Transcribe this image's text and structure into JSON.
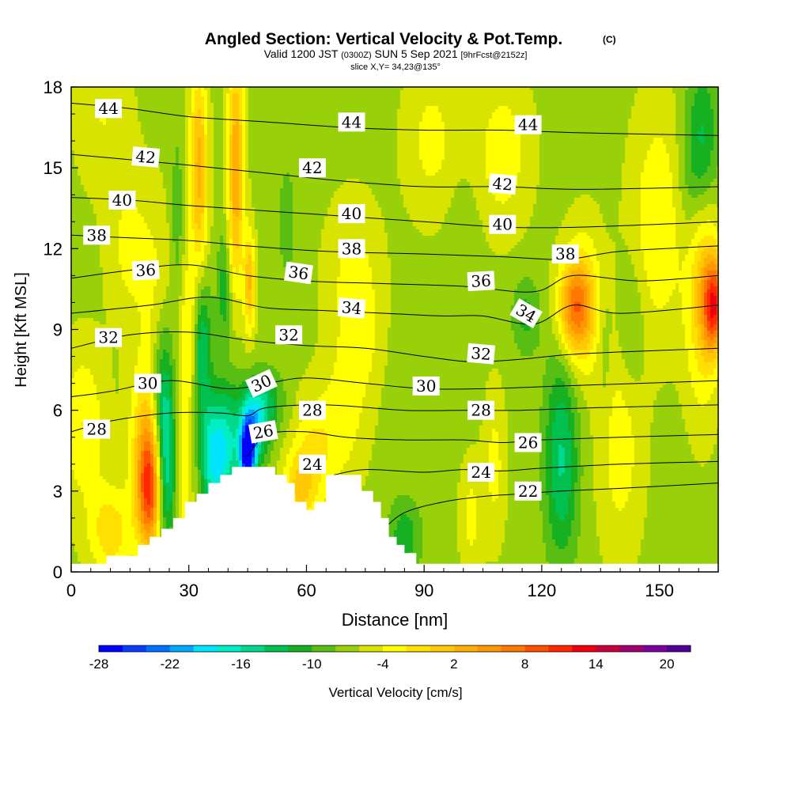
{
  "chart_data": {
    "type": "heatmap",
    "title": {
      "main": "Angled Section: Vertical Velocity & Pot.Temp.",
      "mark": "(C)",
      "valid_prefix": "Valid 1200 JST",
      "valid_utc": "(0300Z)",
      "valid_date": "SUN 5 Sep 2021",
      "forecast": "[9hrFcst@2152z]",
      "slice": "slice X,Y= 34,23@135°"
    },
    "xlabel": "Distance [nm]",
    "ylabel": "Height [Kft MSL]",
    "xlim": [
      0,
      165
    ],
    "ylim": [
      0,
      18
    ],
    "x_ticks": [
      "0",
      "30",
      "60",
      "90",
      "120",
      "150"
    ],
    "y_ticks": [
      "0",
      "3",
      "6",
      "9",
      "12",
      "15",
      "18"
    ],
    "colorbar": {
      "label": "Vertical Velocity [cm/s]",
      "tick_labels": [
        "-28",
        "-22",
        "-16",
        "-10",
        "-4",
        "2",
        "8",
        "14",
        "20"
      ],
      "colors": [
        "#0000ff",
        "#0a3cff",
        "#0070ff",
        "#00a8ff",
        "#00e4ff",
        "#00eec4",
        "#00d88c",
        "#00c050",
        "#16b020",
        "#58be14",
        "#98d00a",
        "#d8e400",
        "#ffff00",
        "#ffe000",
        "#ffc800",
        "#ffb000",
        "#ff9800",
        "#ff7800",
        "#ff5000",
        "#ff2800",
        "#f0000a",
        "#c8003c",
        "#a0006e",
        "#7a00a0",
        "#500096"
      ]
    },
    "background_value": 1,
    "vertical_velocity_cells": [
      {
        "x": 20,
        "z": 3,
        "w": 24,
        "sx": 2.2,
        "sz": 1.6
      },
      {
        "x": 19,
        "z": 5,
        "w": 10,
        "sx": 3,
        "sz": 2
      },
      {
        "x": 23.5,
        "z": 6.5,
        "w": -12,
        "sx": 2.2,
        "sz": 2.2
      },
      {
        "x": 24.5,
        "z": 3.5,
        "w": -12,
        "sx": 2,
        "sz": 2
      },
      {
        "x": 28,
        "z": 4,
        "w": 8,
        "sx": 2,
        "sz": 3
      },
      {
        "x": 30.5,
        "z": 9,
        "w": 10,
        "sx": 1.6,
        "sz": 2
      },
      {
        "x": 33,
        "z": 8.5,
        "w": -12,
        "sx": 1.8,
        "sz": 2
      },
      {
        "x": 36,
        "z": 4.2,
        "w": -14,
        "sx": 2.2,
        "sz": 1.6
      },
      {
        "x": 40,
        "z": 4.6,
        "w": -12,
        "sx": 2.5,
        "sz": 1.6
      },
      {
        "x": 45,
        "z": 4.3,
        "w": -28,
        "sx": 1.3,
        "sz": 0.9
      },
      {
        "x": 46.5,
        "z": 5.2,
        "w": -14,
        "sx": 2.5,
        "sz": 1
      },
      {
        "x": 49,
        "z": 6.3,
        "w": -8,
        "sx": 3.5,
        "sz": 0.8
      },
      {
        "x": 32.5,
        "z": 15.5,
        "w": 14,
        "sx": 1.6,
        "sz": 2.3
      },
      {
        "x": 33,
        "z": 12,
        "w": 6,
        "sx": 1.5,
        "sz": 2
      },
      {
        "x": 42,
        "z": 16,
        "w": 14,
        "sx": 1.5,
        "sz": 2.5
      },
      {
        "x": 42,
        "z": 12.5,
        "w": 8,
        "sx": 1.5,
        "sz": 2
      },
      {
        "x": 45.5,
        "z": 10.7,
        "w": 14,
        "sx": 1,
        "sz": 1.3
      },
      {
        "x": 39,
        "z": 10.5,
        "w": -6,
        "sx": 1.2,
        "sz": 1.5
      },
      {
        "x": 27,
        "z": 13,
        "w": -3,
        "sx": 1.2,
        "sz": 2.5
      },
      {
        "x": 22,
        "z": 9,
        "w": 6,
        "sx": 3,
        "sz": 3
      },
      {
        "x": 3,
        "z": 5.5,
        "w": 8,
        "sx": 4,
        "sz": 2
      },
      {
        "x": 10,
        "z": 1.5,
        "w": 10,
        "sx": 4,
        "sz": 1.2
      },
      {
        "x": 128.5,
        "z": 9.8,
        "w": 18,
        "sx": 3,
        "sz": 1.2
      },
      {
        "x": 131,
        "z": 10,
        "w": 8,
        "sx": 4,
        "sz": 2
      },
      {
        "x": 164,
        "z": 9.9,
        "w": 24,
        "sx": 2,
        "sz": 1.2
      },
      {
        "x": 161,
        "z": 10.5,
        "w": 12,
        "sx": 3,
        "sz": 3
      },
      {
        "x": 125,
        "z": 5,
        "w": -8,
        "sx": 3,
        "sz": 2.5
      },
      {
        "x": 125,
        "z": 2.5,
        "w": -3,
        "sx": 3,
        "sz": 2
      },
      {
        "x": 116,
        "z": 9.5,
        "w": -5,
        "sx": 2.5,
        "sz": 1
      },
      {
        "x": 142.5,
        "z": 9,
        "w": -4,
        "sx": 2.5,
        "sz": 1.8
      },
      {
        "x": 161,
        "z": 16,
        "w": -8,
        "sx": 3,
        "sz": 2
      },
      {
        "x": 158,
        "z": 14,
        "w": -3,
        "sx": 3,
        "sz": 2
      },
      {
        "x": 85,
        "z": 1.3,
        "w": -6,
        "sx": 3,
        "sz": 1
      },
      {
        "x": 62,
        "z": 4.5,
        "w": 8,
        "sx": 4,
        "sz": 1.5
      },
      {
        "x": 58,
        "z": 3,
        "w": 10,
        "sx": 3,
        "sz": 1
      },
      {
        "x": 70,
        "z": 6,
        "w": 6,
        "sx": 4,
        "sz": 2
      },
      {
        "x": 72,
        "z": 11,
        "w": 6,
        "sx": 5,
        "sz": 2
      },
      {
        "x": 102,
        "z": 2,
        "w": 6,
        "sx": 2,
        "sz": 1.5
      },
      {
        "x": 108,
        "z": 4,
        "w": 6,
        "sx": 2,
        "sz": 2
      },
      {
        "x": 140,
        "z": 5,
        "w": 7,
        "sx": 4,
        "sz": 3
      },
      {
        "x": 150,
        "z": 13,
        "w": 8,
        "sx": 5,
        "sz": 3
      },
      {
        "x": 110,
        "z": 15.5,
        "w": 7,
        "sx": 5,
        "sz": 2
      },
      {
        "x": 8,
        "z": 17,
        "w": 5,
        "sx": 5,
        "sz": 2
      },
      {
        "x": 15,
        "z": 12,
        "w": 6,
        "sx": 4,
        "sz": 2
      },
      {
        "x": 92,
        "z": 16,
        "w": 6,
        "sx": 5,
        "sz": 2
      },
      {
        "x": 136,
        "z": 8.5,
        "w": -3,
        "sx": 1.5,
        "sz": 2
      },
      {
        "x": 55,
        "z": 13,
        "w": -2,
        "sx": 2,
        "sz": 2
      },
      {
        "x": 100,
        "z": 12,
        "w": -1,
        "sx": 3,
        "sz": 2
      },
      {
        "x": 75,
        "z": 8.5,
        "w": 4,
        "sx": 3,
        "sz": 1.5
      }
    ],
    "terrain": [
      [
        0,
        0.3
      ],
      [
        9,
        0.3
      ],
      [
        9,
        0.6
      ],
      [
        15,
        0.6
      ],
      [
        15,
        0.6
      ],
      [
        17,
        0.6
      ],
      [
        17,
        1.0
      ],
      [
        20,
        1.0
      ],
      [
        20,
        1.3
      ],
      [
        23,
        1.3
      ],
      [
        23,
        1.6
      ],
      [
        26,
        1.6
      ],
      [
        26,
        2.0
      ],
      [
        29,
        2.0
      ],
      [
        29,
        2.6
      ],
      [
        32,
        2.6
      ],
      [
        32,
        2.9
      ],
      [
        35,
        2.9
      ],
      [
        35,
        3.3
      ],
      [
        38,
        3.3
      ],
      [
        38,
        3.6
      ],
      [
        41,
        3.6
      ],
      [
        41,
        3.9
      ],
      [
        52,
        3.9
      ],
      [
        52,
        3.6
      ],
      [
        55,
        3.6
      ],
      [
        55,
        3.3
      ],
      [
        57,
        3.3
      ],
      [
        57,
        2.6
      ],
      [
        60,
        2.6
      ],
      [
        60,
        2.3
      ],
      [
        62,
        2.3
      ],
      [
        62,
        2.6
      ],
      [
        65,
        2.6
      ],
      [
        65,
        3.6
      ],
      [
        74,
        3.6
      ],
      [
        74,
        3.0
      ],
      [
        77,
        3.0
      ],
      [
        77,
        2.6
      ],
      [
        79,
        2.6
      ],
      [
        79,
        2.0
      ],
      [
        81,
        2.0
      ],
      [
        81,
        1.3
      ],
      [
        83,
        1.3
      ],
      [
        83,
        1.0
      ],
      [
        85,
        1.0
      ],
      [
        85,
        0.7
      ],
      [
        88,
        0.7
      ],
      [
        88,
        0.3
      ],
      [
        165,
        0.3
      ]
    ],
    "isentropes": [
      {
        "level": 22,
        "pts": [
          [
            79,
            1.5
          ],
          [
            85,
            2.2
          ],
          [
            95,
            2.6
          ],
          [
            105,
            2.8
          ],
          [
            115,
            2.9
          ],
          [
            125,
            3.0
          ],
          [
            140,
            3.1
          ],
          [
            165,
            3.3
          ]
        ]
      },
      {
        "level": 24,
        "pts": [
          [
            67,
            3.6
          ],
          [
            75,
            3.8
          ],
          [
            90,
            3.7
          ],
          [
            100,
            3.8
          ],
          [
            110,
            3.75
          ],
          [
            120,
            3.85
          ],
          [
            140,
            4.0
          ],
          [
            165,
            4.1
          ]
        ]
      },
      {
        "level": 26,
        "pts": [
          [
            45,
            4.3
          ],
          [
            50,
            5.1
          ],
          [
            60,
            5.2
          ],
          [
            70,
            5.0
          ],
          [
            85,
            4.9
          ],
          [
            100,
            4.9
          ],
          [
            110,
            4.8
          ],
          [
            120,
            4.9
          ],
          [
            140,
            5.0
          ],
          [
            165,
            5.1
          ]
        ]
      },
      {
        "level": 28,
        "pts": [
          [
            0,
            5.2
          ],
          [
            10,
            5.6
          ],
          [
            25,
            5.9
          ],
          [
            38,
            5.9
          ],
          [
            45,
            5.8
          ],
          [
            50,
            6.1
          ],
          [
            65,
            6.2
          ],
          [
            85,
            6.0
          ],
          [
            100,
            6.0
          ],
          [
            115,
            6.0
          ],
          [
            135,
            6.1
          ],
          [
            165,
            6.2
          ]
        ]
      },
      {
        "level": 30,
        "pts": [
          [
            0,
            6.5
          ],
          [
            10,
            6.7
          ],
          [
            25,
            7.1
          ],
          [
            40,
            6.8
          ],
          [
            50,
            7.0
          ],
          [
            60,
            7.2
          ],
          [
            75,
            7.0
          ],
          [
            90,
            6.8
          ],
          [
            105,
            6.8
          ],
          [
            125,
            6.9
          ],
          [
            165,
            7.1
          ]
        ]
      },
      {
        "level": 32,
        "pts": [
          [
            0,
            8.3
          ],
          [
            15,
            8.8
          ],
          [
            30,
            8.9
          ],
          [
            45,
            8.6
          ],
          [
            60,
            8.4
          ],
          [
            75,
            8.3
          ],
          [
            90,
            8.0
          ],
          [
            102,
            7.8
          ],
          [
            115,
            7.9
          ],
          [
            130,
            8.1
          ],
          [
            165,
            8.3
          ]
        ]
      },
      {
        "level": 34,
        "pts": [
          [
            0,
            9.6
          ],
          [
            20,
            9.9
          ],
          [
            35,
            10.2
          ],
          [
            50,
            9.8
          ],
          [
            65,
            9.7
          ],
          [
            80,
            9.6
          ],
          [
            95,
            9.5
          ],
          [
            105,
            9.5
          ],
          [
            118,
            9.2
          ],
          [
            128,
            9.9
          ],
          [
            140,
            9.6
          ],
          [
            165,
            9.9
          ]
        ]
      },
      {
        "level": 36,
        "pts": [
          [
            0,
            10.9
          ],
          [
            15,
            11.2
          ],
          [
            30,
            11.4
          ],
          [
            45,
            11.0
          ],
          [
            60,
            10.8
          ],
          [
            80,
            10.7
          ],
          [
            100,
            10.6
          ],
          [
            118,
            10.4
          ],
          [
            128,
            11.0
          ],
          [
            145,
            10.8
          ],
          [
            165,
            11.0
          ]
        ]
      },
      {
        "level": 38,
        "pts": [
          [
            0,
            12.5
          ],
          [
            15,
            12.4
          ],
          [
            30,
            12.3
          ],
          [
            45,
            12.1
          ],
          [
            65,
            11.9
          ],
          [
            90,
            11.8
          ],
          [
            110,
            11.7
          ],
          [
            126,
            11.6
          ],
          [
            140,
            11.9
          ],
          [
            165,
            12.1
          ]
        ]
      },
      {
        "level": 40,
        "pts": [
          [
            0,
            13.9
          ],
          [
            15,
            13.8
          ],
          [
            30,
            13.6
          ],
          [
            50,
            13.4
          ],
          [
            70,
            13.2
          ],
          [
            90,
            13.0
          ],
          [
            110,
            12.8
          ],
          [
            130,
            12.8
          ],
          [
            165,
            13.0
          ]
        ]
      },
      {
        "level": 42,
        "pts": [
          [
            0,
            15.5
          ],
          [
            15,
            15.3
          ],
          [
            30,
            15.1
          ],
          [
            50,
            14.8
          ],
          [
            70,
            14.5
          ],
          [
            90,
            14.3
          ],
          [
            110,
            14.3
          ],
          [
            130,
            14.2
          ],
          [
            165,
            14.3
          ]
        ]
      },
      {
        "level": 44,
        "pts": [
          [
            0,
            17.4
          ],
          [
            15,
            17.2
          ],
          [
            30,
            16.9
          ],
          [
            50,
            16.7
          ],
          [
            70,
            16.5
          ],
          [
            90,
            16.4
          ],
          [
            110,
            16.4
          ],
          [
            130,
            16.3
          ],
          [
            165,
            16.2
          ]
        ]
      }
    ],
    "contour_labels": [
      {
        "text": "44",
        "x": 9.5,
        "z": 17.2,
        "rot": 0
      },
      {
        "text": "42",
        "x": 19,
        "z": 15.4,
        "rot": 5
      },
      {
        "text": "40",
        "x": 13,
        "z": 13.8,
        "rot": 0
      },
      {
        "text": "38",
        "x": 6.5,
        "z": 12.5,
        "rot": 0
      },
      {
        "text": "36",
        "x": 19,
        "z": 11.2,
        "rot": -3
      },
      {
        "text": "32",
        "x": 9.5,
        "z": 8.7,
        "rot": 0
      },
      {
        "text": "30",
        "x": 19.5,
        "z": 7.0,
        "rot": 0
      },
      {
        "text": "28",
        "x": 6.5,
        "z": 5.3,
        "rot": 0
      },
      {
        "text": "44",
        "x": 71.5,
        "z": 16.7,
        "rot": 0
      },
      {
        "text": "42",
        "x": 61.5,
        "z": 15.0,
        "rot": 0
      },
      {
        "text": "40",
        "x": 71.5,
        "z": 13.3,
        "rot": 0
      },
      {
        "text": "38",
        "x": 71.5,
        "z": 12.0,
        "rot": 0
      },
      {
        "text": "36",
        "x": 58,
        "z": 11.1,
        "rot": 8
      },
      {
        "text": "34",
        "x": 71.5,
        "z": 9.8,
        "rot": 5
      },
      {
        "text": "32",
        "x": 55.5,
        "z": 8.8,
        "rot": 0
      },
      {
        "text": "30",
        "x": 48.5,
        "z": 7.0,
        "rot": -25
      },
      {
        "text": "28",
        "x": 61.5,
        "z": 6.0,
        "rot": 0
      },
      {
        "text": "26",
        "x": 49,
        "z": 5.2,
        "rot": -10
      },
      {
        "text": "24",
        "x": 61.5,
        "z": 4.0,
        "rot": 0
      },
      {
        "text": "30",
        "x": 90.5,
        "z": 6.9,
        "rot": 0
      },
      {
        "text": "32",
        "x": 104.5,
        "z": 8.1,
        "rot": 5
      },
      {
        "text": "36",
        "x": 104.5,
        "z": 10.8,
        "rot": -3
      },
      {
        "text": "28",
        "x": 104.5,
        "z": 6.0,
        "rot": 0
      },
      {
        "text": "24",
        "x": 104.5,
        "z": 3.7,
        "rot": 0
      },
      {
        "text": "44",
        "x": 116.5,
        "z": 16.6,
        "rot": 0
      },
      {
        "text": "42",
        "x": 110,
        "z": 14.4,
        "rot": 5
      },
      {
        "text": "40",
        "x": 110,
        "z": 12.9,
        "rot": 0
      },
      {
        "text": "38",
        "x": 126,
        "z": 11.8,
        "rot": 0
      },
      {
        "text": "34",
        "x": 116,
        "z": 9.6,
        "rot": 30
      },
      {
        "text": "26",
        "x": 116.5,
        "z": 4.8,
        "rot": 0
      },
      {
        "text": "22",
        "x": 116.5,
        "z": 3.0,
        "rot": 0
      }
    ]
  }
}
